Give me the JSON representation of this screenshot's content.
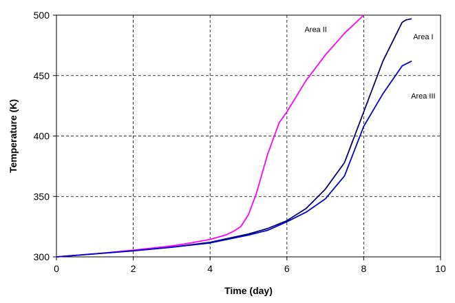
{
  "chart_data": {
    "type": "line",
    "title": "",
    "xlabel": "Time (day)",
    "ylabel": "Temperature (K)",
    "xlim": [
      0,
      10
    ],
    "ylim": [
      300,
      500
    ],
    "x_ticks": [
      0,
      2,
      4,
      6,
      8,
      10
    ],
    "y_ticks": [
      300,
      350,
      400,
      450,
      500
    ],
    "grid": "dashed",
    "legend": "none",
    "series": [
      {
        "name": "Area I",
        "color": "#000066",
        "points": [
          [
            0,
            300
          ],
          [
            1,
            302.5
          ],
          [
            2,
            305
          ],
          [
            3,
            308
          ],
          [
            4,
            312
          ],
          [
            5,
            319
          ],
          [
            5.5,
            323.5
          ],
          [
            6,
            330
          ],
          [
            6.5,
            340
          ],
          [
            7,
            356
          ],
          [
            7.5,
            378
          ],
          [
            8,
            420
          ],
          [
            8.5,
            462
          ],
          [
            9,
            494
          ],
          [
            9.1,
            496
          ],
          [
            9.25,
            497
          ]
        ]
      },
      {
        "name": "Area II",
        "color": "#ff00ff",
        "points": [
          [
            0,
            300
          ],
          [
            1,
            302.5
          ],
          [
            2,
            305.5
          ],
          [
            3,
            309
          ],
          [
            3.5,
            311.5
          ],
          [
            4,
            314.5
          ],
          [
            4.4,
            318
          ],
          [
            4.6,
            321
          ],
          [
            4.8,
            325
          ],
          [
            5,
            335
          ],
          [
            5.2,
            352
          ],
          [
            5.5,
            385
          ],
          [
            5.8,
            411
          ],
          [
            6,
            420
          ],
          [
            6.5,
            446
          ],
          [
            7,
            467
          ],
          [
            7.5,
            485
          ],
          [
            8,
            500
          ]
        ]
      },
      {
        "name": "Area III",
        "color": "#0000cc",
        "points": [
          [
            0,
            300
          ],
          [
            1,
            302.5
          ],
          [
            2,
            305
          ],
          [
            3,
            308
          ],
          [
            4,
            311.5
          ],
          [
            5,
            318
          ],
          [
            5.5,
            322
          ],
          [
            6,
            329
          ],
          [
            6.5,
            337
          ],
          [
            7,
            348
          ],
          [
            7.5,
            367
          ],
          [
            8,
            408
          ],
          [
            8.5,
            435
          ],
          [
            9,
            458
          ],
          [
            9.25,
            462
          ]
        ]
      }
    ],
    "annotations": [
      {
        "text": "Area II",
        "x": 6.75,
        "y": 486
      },
      {
        "text": "Area I",
        "x": 9.55,
        "y": 480
      },
      {
        "text": "Area III",
        "x": 9.55,
        "y": 431
      }
    ]
  }
}
